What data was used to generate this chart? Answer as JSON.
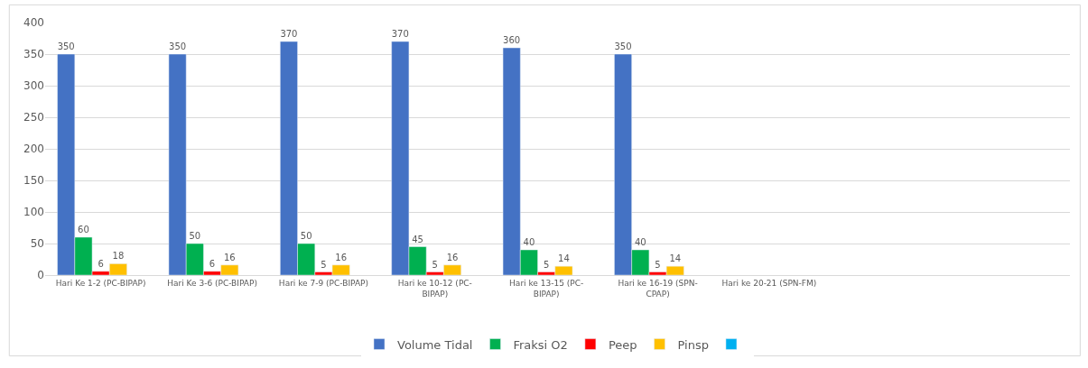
{
  "chart_data": {
    "type": "bar",
    "categories": [
      "Hari Ke 1-2 (PC-BIPAP)",
      "Hari Ke 3-6 (PC-BIPAP)",
      "Hari ke 7-9 (PC-BIPAP)",
      "Hari ke 10-12 (PC-BIPAP)",
      "Hari ke 13-15 (PC-BIPAP)",
      "Hari ke 16-19 (SPN-CPAP)",
      "Hari ke 20-21 (SPN-FM)"
    ],
    "series": [
      {
        "name": "Volume Tidal",
        "color": "#4472c4",
        "values": [
          350,
          350,
          370,
          370,
          360,
          350,
          null
        ]
      },
      {
        "name": "Fraksi O2",
        "color": "#00b050",
        "values": [
          60,
          50,
          50,
          45,
          40,
          40,
          null
        ]
      },
      {
        "name": "Peep",
        "color": "#ff0000",
        "values": [
          6,
          6,
          5,
          5,
          5,
          5,
          null
        ]
      },
      {
        "name": "Pinsp",
        "color": "#ffc000",
        "values": [
          18,
          16,
          16,
          16,
          14,
          14,
          null
        ]
      },
      {
        "color": "#00b0f0",
        "values": [
          null,
          null,
          null,
          null,
          null,
          null,
          null
        ]
      }
    ],
    "ylim": [
      0,
      400
    ],
    "yticks": [
      0,
      50,
      100,
      150,
      200,
      250,
      300,
      350,
      400
    ],
    "grid": "y",
    "legend": "bottom",
    "data_labels": true
  }
}
